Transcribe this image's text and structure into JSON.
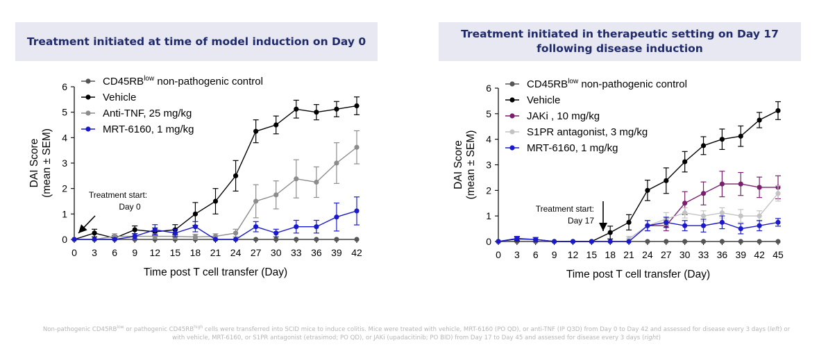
{
  "panels": {
    "left_title": "Treatment initiated at time of model induction on Day 0",
    "right_title": "Treatment initiated in therapeutic setting on Day 17 following disease induction"
  },
  "footnote": {
    "p1": "Non-pathogenic CD45RB",
    "s1": "low",
    "p2": " or pathogenic CD45RB",
    "s2": "high",
    "p3": " cells were transferred into SCID mice to induce colitis. Mice were treated with vehicle, MRT-6160 (PO QD), or anti-TNF (IP Q3D) from Day 0 to Day 42 and assessed for disease every 3 days (",
    "i1": "left",
    "p4": ") or with vehicle, MRT-6160, or S1PR antagonist (etrasimod; PO QD), or JAKi (upadacitinib; PO BID) from Day 17 to Day 45 and assessed for disease every 3 days (",
    "i2": "right",
    "p5": ")"
  },
  "chart_data": [
    {
      "type": "line",
      "title": "Treatment initiated at time of model induction on Day 0",
      "xlabel": "Time post T cell transfer (Day)",
      "ylabel": "DAI Score",
      "ylabel2": "(mean ± SEM)",
      "xlim": [
        0,
        42
      ],
      "ylim": [
        0,
        6
      ],
      "xticks": [
        0,
        3,
        6,
        9,
        12,
        15,
        18,
        21,
        24,
        27,
        30,
        33,
        36,
        39,
        42
      ],
      "yticks": [
        0,
        1,
        2,
        3,
        4,
        5,
        6
      ],
      "legend_position": "top-left",
      "annotation": {
        "line1": "Treatment start:",
        "line2": "Day 0",
        "day": 0
      },
      "series": [
        {
          "name": "CD45RB",
          "sup": "low",
          "suffix": " non-pathogenic control",
          "color": "#555555",
          "x": [
            0,
            3,
            6,
            9,
            12,
            15,
            18,
            21,
            24,
            27,
            30,
            33,
            36,
            39,
            42
          ],
          "y": [
            0,
            0,
            0,
            0,
            0,
            0,
            0,
            0,
            0,
            0,
            0,
            0,
            0,
            0,
            0
          ],
          "err": [
            0,
            0,
            0,
            0,
            0,
            0,
            0,
            0,
            0,
            0,
            0,
            0,
            0,
            0,
            0
          ]
        },
        {
          "name": "Vehicle",
          "color": "#000000",
          "x": [
            0,
            3,
            6,
            9,
            12,
            15,
            18,
            21,
            24,
            27,
            30,
            33,
            36,
            39,
            42
          ],
          "y": [
            0,
            0.25,
            0.05,
            0.38,
            0.3,
            0.38,
            1.0,
            1.5,
            2.5,
            4.25,
            4.5,
            5.12,
            5.0,
            5.12,
            5.25
          ],
          "err": [
            0,
            0.15,
            0.1,
            0.15,
            0.15,
            0.2,
            0.45,
            0.5,
            0.6,
            0.45,
            0.35,
            0.35,
            0.3,
            0.3,
            0.35
          ]
        },
        {
          "name": "Anti-TNF, 25 mg/kg",
          "color": "#8c8c8c",
          "x": [
            0,
            3,
            6,
            9,
            12,
            15,
            18,
            21,
            24,
            27,
            30,
            33,
            36,
            39,
            42
          ],
          "y": [
            0,
            0,
            0.12,
            0.12,
            0.12,
            0.12,
            0.1,
            0.12,
            0.25,
            1.5,
            1.75,
            2.38,
            2.25,
            3.0,
            3.62
          ],
          "err": [
            0,
            0,
            0.1,
            0.1,
            0.1,
            0.1,
            0.1,
            0.1,
            0.15,
            0.65,
            0.55,
            0.75,
            0.6,
            0.8,
            0.65
          ]
        },
        {
          "name": "MRT-6160, 1 mg/kg",
          "color": "#1a1acc",
          "x": [
            0,
            3,
            6,
            9,
            12,
            15,
            18,
            21,
            24,
            27,
            30,
            33,
            36,
            39,
            42
          ],
          "y": [
            0,
            0,
            0,
            0.12,
            0.38,
            0.25,
            0.5,
            0,
            0,
            0.5,
            0.25,
            0.5,
            0.5,
            0.88,
            1.12
          ],
          "err": [
            0,
            0,
            0,
            0.1,
            0.2,
            0.15,
            0.2,
            0,
            0,
            0.2,
            0.15,
            0.25,
            0.25,
            0.55,
            0.55
          ]
        }
      ]
    },
    {
      "type": "line",
      "title": "Treatment initiated in therapeutic setting on Day 17 following disease induction",
      "xlabel": "Time post T cell transfer (Day)",
      "ylabel": "DAI Score",
      "ylabel2": "(mean ± SEM)",
      "xlim": [
        0,
        45
      ],
      "ylim": [
        0,
        6
      ],
      "xticks": [
        0,
        3,
        6,
        9,
        12,
        15,
        18,
        21,
        24,
        27,
        30,
        33,
        36,
        39,
        42,
        45
      ],
      "yticks": [
        0,
        1,
        2,
        3,
        4,
        5,
        6
      ],
      "legend_position": "top-left",
      "annotation": {
        "line1": "Treatment start:",
        "line2": "Day 17",
        "day": 17
      },
      "series": [
        {
          "name": "CD45RB",
          "sup": "low",
          "suffix": " non-pathogenic control",
          "color": "#555555",
          "x": [
            0,
            3,
            6,
            9,
            12,
            15,
            18,
            21,
            24,
            27,
            30,
            33,
            36,
            39,
            42,
            45
          ],
          "y": [
            0,
            0,
            0,
            0,
            0,
            0,
            0,
            0,
            0,
            0,
            0,
            0,
            0,
            0,
            0,
            0
          ],
          "err": [
            0,
            0,
            0,
            0,
            0,
            0,
            0,
            0,
            0,
            0,
            0,
            0,
            0,
            0,
            0,
            0
          ]
        },
        {
          "name": "Vehicle",
          "color": "#000000",
          "x": [
            0,
            3,
            6,
            9,
            12,
            15,
            18,
            21,
            24,
            27,
            30,
            33,
            36,
            39,
            42,
            45
          ],
          "y": [
            0,
            0.1,
            0.08,
            0,
            0,
            0,
            0.35,
            0.75,
            2.0,
            2.38,
            3.12,
            3.75,
            4.0,
            4.12,
            4.75,
            5.12
          ],
          "err": [
            0,
            0.08,
            0.08,
            0,
            0,
            0,
            0.25,
            0.3,
            0.4,
            0.5,
            0.4,
            0.35,
            0.4,
            0.4,
            0.3,
            0.35
          ]
        },
        {
          "name": "JAKi , 10 mg/kg",
          "color": "#7a1f6e",
          "x": [
            24,
            27,
            30,
            33,
            36,
            39,
            42,
            45
          ],
          "y": [
            0.62,
            0.62,
            1.5,
            1.88,
            2.25,
            2.25,
            2.12,
            2.12
          ],
          "err": [
            0.2,
            0.2,
            0.45,
            0.45,
            0.5,
            0.45,
            0.4,
            0.45
          ]
        },
        {
          "name": "S1PR antagonist, 3 mg/kg",
          "color": "#c3c3c3",
          "x": [
            21,
            24,
            27,
            30,
            33,
            36,
            39,
            42,
            45
          ],
          "y": [
            0.1,
            0.62,
            0.88,
            1.12,
            1.0,
            1.12,
            1.0,
            1.0,
            1.88
          ],
          "err": [
            0.1,
            0.2,
            0.25,
            0.2,
            0.2,
            0.2,
            0.25,
            0.2,
            0.3
          ]
        },
        {
          "name": "MRT-6160, 1 mg/kg",
          "color": "#1a1acc",
          "x": [
            0,
            3,
            6,
            9,
            12,
            15,
            18,
            21,
            24,
            27,
            30,
            33,
            36,
            39,
            42,
            45
          ],
          "y": [
            0,
            0.12,
            0.08,
            0,
            0,
            0,
            0,
            0,
            0.62,
            0.75,
            0.62,
            0.62,
            0.75,
            0.5,
            0.62,
            0.75
          ],
          "err": [
            0,
            0.08,
            0.08,
            0,
            0,
            0,
            0,
            0,
            0.2,
            0.2,
            0.2,
            0.25,
            0.25,
            0.2,
            0.2,
            0.15
          ]
        }
      ]
    }
  ]
}
